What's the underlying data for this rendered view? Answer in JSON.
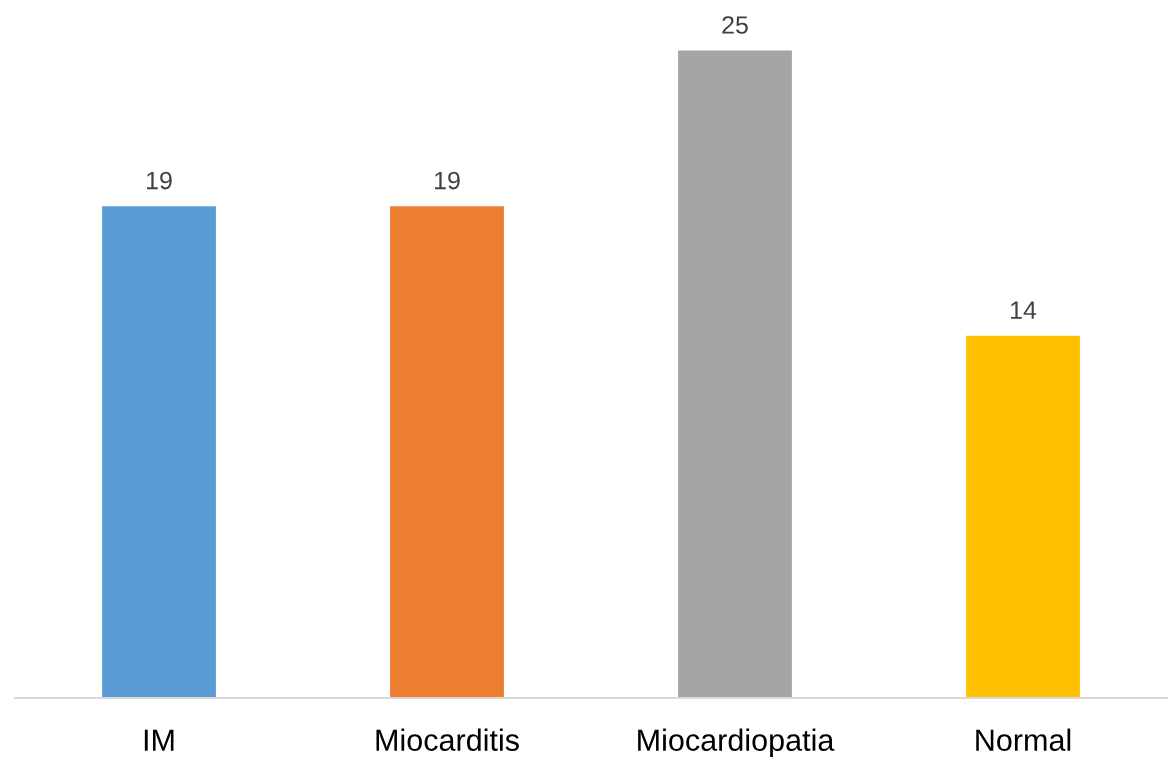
{
  "chart_data": {
    "type": "bar",
    "categories": [
      "IM",
      "Miocarditis",
      "Miocardiopatia",
      "Normal"
    ],
    "values": [
      19,
      19,
      25,
      14
    ],
    "colors": [
      "#5b9bd5",
      "#ed7d31",
      "#a5a5a5",
      "#ffc000"
    ],
    "data_labels": true,
    "grid": false,
    "legend": false
  }
}
